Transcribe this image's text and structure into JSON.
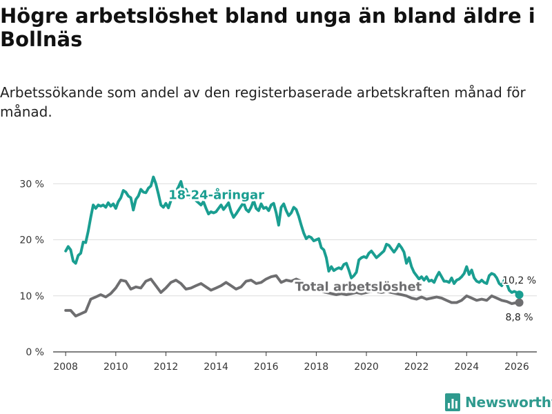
{
  "header": {
    "title": "Högre arbetslöshet bland unga än bland äldre i Bollnäs",
    "subtitle": "Arbetssökande som andel av den registerbaserade arbetskraften månad för månad."
  },
  "colors": {
    "youth": "#1a9e91",
    "total": "#6e6e70",
    "grid": "#dcdcdc",
    "brand": "#2f9a8e"
  },
  "brand": {
    "name": "Newsworthy",
    "icon": "bar-chart-logo-icon"
  },
  "chart_data": {
    "type": "line",
    "title": "Högre arbetslöshet bland unga än bland äldre i Bollnäs",
    "xlabel": "",
    "ylabel": "",
    "xlim": [
      2007.5,
      2026.8
    ],
    "ylim": [
      0,
      32
    ],
    "yticks": [
      0,
      10,
      20,
      30
    ],
    "ytick_labels": [
      "0 %",
      "10 %",
      "20 %",
      "30 %"
    ],
    "xticks": [
      2008,
      2010,
      2012,
      2014,
      2016,
      2018,
      2020,
      2022,
      2024,
      2026
    ],
    "xtick_labels": [
      "2008",
      "2010",
      "2012",
      "2014",
      "2016",
      "2018",
      "2020",
      "2022",
      "2024",
      "2026"
    ],
    "grid": true,
    "series": [
      {
        "name": "18-24-åringar",
        "label": "18-24-åringar",
        "color": "#1a9e91",
        "end_label": "10,2 %",
        "points": [
          [
            2008.0,
            18.0
          ],
          [
            2008.1,
            18.8
          ],
          [
            2008.2,
            18.2
          ],
          [
            2008.3,
            16.2
          ],
          [
            2008.4,
            15.8
          ],
          [
            2008.5,
            17.2
          ],
          [
            2008.6,
            17.6
          ],
          [
            2008.7,
            19.6
          ],
          [
            2008.8,
            19.5
          ],
          [
            2008.9,
            21.5
          ],
          [
            2009.0,
            24.0
          ],
          [
            2009.1,
            26.2
          ],
          [
            2009.2,
            25.6
          ],
          [
            2009.3,
            26.2
          ],
          [
            2009.4,
            26.0
          ],
          [
            2009.5,
            26.2
          ],
          [
            2009.6,
            25.8
          ],
          [
            2009.7,
            26.6
          ],
          [
            2009.8,
            26.0
          ],
          [
            2009.9,
            26.4
          ],
          [
            2010.0,
            25.6
          ],
          [
            2010.1,
            26.8
          ],
          [
            2010.2,
            27.5
          ],
          [
            2010.3,
            28.8
          ],
          [
            2010.4,
            28.5
          ],
          [
            2010.5,
            27.8
          ],
          [
            2010.6,
            27.5
          ],
          [
            2010.7,
            25.3
          ],
          [
            2010.8,
            27.2
          ],
          [
            2010.9,
            27.8
          ],
          [
            2011.0,
            29.0
          ],
          [
            2011.1,
            28.5
          ],
          [
            2011.2,
            28.4
          ],
          [
            2011.3,
            29.2
          ],
          [
            2011.4,
            29.6
          ],
          [
            2011.5,
            31.2
          ],
          [
            2011.6,
            30.0
          ],
          [
            2011.7,
            28.2
          ],
          [
            2011.8,
            26.2
          ],
          [
            2011.9,
            25.8
          ],
          [
            2012.0,
            26.5
          ],
          [
            2012.1,
            25.7
          ],
          [
            2012.2,
            27.0
          ],
          [
            2012.3,
            28.2
          ],
          [
            2012.4,
            28.6
          ],
          [
            2012.5,
            29.4
          ],
          [
            2012.6,
            30.4
          ],
          [
            2012.7,
            28.6
          ],
          [
            2012.8,
            29.0
          ],
          [
            2012.9,
            27.8
          ],
          [
            2013.0,
            27.4
          ],
          [
            2013.1,
            27.8
          ],
          [
            2013.2,
            27.0
          ],
          [
            2013.3,
            26.6
          ],
          [
            2013.4,
            26.2
          ],
          [
            2013.5,
            26.8
          ],
          [
            2013.6,
            25.6
          ],
          [
            2013.7,
            24.6
          ],
          [
            2013.8,
            25.0
          ],
          [
            2013.9,
            24.8
          ],
          [
            2014.0,
            25.0
          ],
          [
            2014.1,
            25.6
          ],
          [
            2014.2,
            26.2
          ],
          [
            2014.3,
            25.4
          ],
          [
            2014.4,
            26.0
          ],
          [
            2014.5,
            26.6
          ],
          [
            2014.6,
            25.0
          ],
          [
            2014.7,
            24.0
          ],
          [
            2014.8,
            24.6
          ],
          [
            2014.9,
            25.3
          ],
          [
            2015.0,
            26.0
          ],
          [
            2015.1,
            26.6
          ],
          [
            2015.2,
            25.4
          ],
          [
            2015.3,
            25.0
          ],
          [
            2015.4,
            25.8
          ],
          [
            2015.5,
            27.0
          ],
          [
            2015.6,
            25.6
          ],
          [
            2015.7,
            25.2
          ],
          [
            2015.8,
            26.4
          ],
          [
            2015.9,
            25.6
          ],
          [
            2016.0,
            25.8
          ],
          [
            2016.1,
            25.2
          ],
          [
            2016.2,
            26.2
          ],
          [
            2016.3,
            26.5
          ],
          [
            2016.4,
            24.8
          ],
          [
            2016.5,
            22.6
          ],
          [
            2016.6,
            25.8
          ],
          [
            2016.7,
            26.4
          ],
          [
            2016.8,
            25.2
          ],
          [
            2016.9,
            24.3
          ],
          [
            2017.0,
            24.8
          ],
          [
            2017.1,
            25.8
          ],
          [
            2017.2,
            25.4
          ],
          [
            2017.3,
            24.2
          ],
          [
            2017.4,
            22.6
          ],
          [
            2017.5,
            21.2
          ],
          [
            2017.6,
            20.2
          ],
          [
            2017.7,
            20.6
          ],
          [
            2017.8,
            20.4
          ],
          [
            2017.9,
            19.8
          ],
          [
            2018.0,
            20.0
          ],
          [
            2018.1,
            20.2
          ],
          [
            2018.2,
            18.6
          ],
          [
            2018.3,
            18.2
          ],
          [
            2018.4,
            16.8
          ],
          [
            2018.5,
            14.4
          ],
          [
            2018.6,
            15.2
          ],
          [
            2018.7,
            14.5
          ],
          [
            2018.8,
            14.8
          ],
          [
            2018.9,
            15.0
          ],
          [
            2019.0,
            14.8
          ],
          [
            2019.1,
            15.6
          ],
          [
            2019.2,
            15.8
          ],
          [
            2019.3,
            14.6
          ],
          [
            2019.4,
            13.2
          ],
          [
            2019.5,
            13.6
          ],
          [
            2019.6,
            14.2
          ],
          [
            2019.7,
            16.4
          ],
          [
            2019.8,
            16.8
          ],
          [
            2019.9,
            17.0
          ],
          [
            2020.0,
            16.8
          ],
          [
            2020.1,
            17.6
          ],
          [
            2020.2,
            18.0
          ],
          [
            2020.3,
            17.4
          ],
          [
            2020.4,
            16.8
          ],
          [
            2020.5,
            17.2
          ],
          [
            2020.6,
            17.6
          ],
          [
            2020.7,
            18.0
          ],
          [
            2020.8,
            19.2
          ],
          [
            2020.9,
            19.0
          ],
          [
            2021.0,
            18.4
          ],
          [
            2021.1,
            17.8
          ],
          [
            2021.2,
            18.4
          ],
          [
            2021.3,
            19.2
          ],
          [
            2021.4,
            18.6
          ],
          [
            2021.5,
            17.8
          ],
          [
            2021.6,
            15.8
          ],
          [
            2021.7,
            16.8
          ],
          [
            2021.8,
            15.2
          ],
          [
            2021.9,
            14.2
          ],
          [
            2022.0,
            13.6
          ],
          [
            2022.1,
            13.0
          ],
          [
            2022.2,
            13.4
          ],
          [
            2022.3,
            12.8
          ],
          [
            2022.4,
            13.4
          ],
          [
            2022.5,
            12.6
          ],
          [
            2022.6,
            12.8
          ],
          [
            2022.7,
            12.4
          ],
          [
            2022.8,
            13.4
          ],
          [
            2022.9,
            14.2
          ],
          [
            2023.0,
            13.4
          ],
          [
            2023.1,
            12.6
          ],
          [
            2023.2,
            12.6
          ],
          [
            2023.3,
            12.4
          ],
          [
            2023.4,
            13.2
          ],
          [
            2023.5,
            12.2
          ],
          [
            2023.6,
            12.8
          ],
          [
            2023.7,
            13.0
          ],
          [
            2023.8,
            13.4
          ],
          [
            2023.9,
            14.0
          ],
          [
            2024.0,
            15.2
          ],
          [
            2024.1,
            13.8
          ],
          [
            2024.2,
            14.6
          ],
          [
            2024.3,
            13.2
          ],
          [
            2024.4,
            12.6
          ],
          [
            2024.5,
            12.4
          ],
          [
            2024.6,
            12.8
          ],
          [
            2024.7,
            12.4
          ],
          [
            2024.8,
            12.2
          ],
          [
            2024.9,
            13.6
          ],
          [
            2025.0,
            14.0
          ],
          [
            2025.1,
            13.8
          ],
          [
            2025.2,
            13.2
          ],
          [
            2025.3,
            12.2
          ],
          [
            2025.4,
            11.8
          ],
          [
            2025.5,
            12.8
          ],
          [
            2025.6,
            12.2
          ],
          [
            2025.7,
            11.0
          ],
          [
            2025.8,
            10.6
          ],
          [
            2025.9,
            10.8
          ],
          [
            2026.0,
            10.6
          ],
          [
            2026.1,
            10.2
          ]
        ]
      },
      {
        "name": "Total arbetslöshet",
        "label": "Total arbetslöshet",
        "color": "#6e6e70",
        "end_label": "8,8 %",
        "points": [
          [
            2008.0,
            7.4
          ],
          [
            2008.2,
            7.4
          ],
          [
            2008.4,
            6.4
          ],
          [
            2008.6,
            6.8
          ],
          [
            2008.8,
            7.2
          ],
          [
            2009.0,
            9.4
          ],
          [
            2009.2,
            9.8
          ],
          [
            2009.4,
            10.2
          ],
          [
            2009.6,
            9.8
          ],
          [
            2009.8,
            10.4
          ],
          [
            2010.0,
            11.4
          ],
          [
            2010.2,
            12.8
          ],
          [
            2010.4,
            12.6
          ],
          [
            2010.6,
            11.2
          ],
          [
            2010.8,
            11.6
          ],
          [
            2011.0,
            11.4
          ],
          [
            2011.2,
            12.6
          ],
          [
            2011.4,
            13.0
          ],
          [
            2011.6,
            11.8
          ],
          [
            2011.8,
            10.6
          ],
          [
            2012.0,
            11.4
          ],
          [
            2012.2,
            12.4
          ],
          [
            2012.4,
            12.8
          ],
          [
            2012.6,
            12.2
          ],
          [
            2012.8,
            11.2
          ],
          [
            2013.0,
            11.4
          ],
          [
            2013.2,
            11.8
          ],
          [
            2013.4,
            12.2
          ],
          [
            2013.6,
            11.6
          ],
          [
            2013.8,
            11.0
          ],
          [
            2014.0,
            11.4
          ],
          [
            2014.2,
            11.8
          ],
          [
            2014.4,
            12.4
          ],
          [
            2014.6,
            11.8
          ],
          [
            2014.8,
            11.2
          ],
          [
            2015.0,
            11.6
          ],
          [
            2015.2,
            12.6
          ],
          [
            2015.4,
            12.8
          ],
          [
            2015.6,
            12.2
          ],
          [
            2015.8,
            12.4
          ],
          [
            2016.0,
            13.0
          ],
          [
            2016.2,
            13.4
          ],
          [
            2016.4,
            13.6
          ],
          [
            2016.6,
            12.4
          ],
          [
            2016.8,
            12.8
          ],
          [
            2017.0,
            12.6
          ],
          [
            2017.2,
            13.0
          ],
          [
            2017.4,
            12.6
          ],
          [
            2017.6,
            11.6
          ],
          [
            2017.8,
            11.4
          ],
          [
            2018.0,
            11.2
          ],
          [
            2018.2,
            10.8
          ],
          [
            2018.4,
            10.6
          ],
          [
            2018.6,
            10.4
          ],
          [
            2018.8,
            10.2
          ],
          [
            2019.0,
            10.4
          ],
          [
            2019.2,
            10.2
          ],
          [
            2019.4,
            10.4
          ],
          [
            2019.6,
            10.6
          ],
          [
            2019.8,
            10.4
          ],
          [
            2020.0,
            10.6
          ],
          [
            2020.2,
            10.8
          ],
          [
            2020.4,
            10.8
          ],
          [
            2020.6,
            10.6
          ],
          [
            2020.8,
            10.8
          ],
          [
            2021.0,
            10.6
          ],
          [
            2021.2,
            10.4
          ],
          [
            2021.4,
            10.2
          ],
          [
            2021.6,
            10.0
          ],
          [
            2021.8,
            9.6
          ],
          [
            2022.0,
            9.4
          ],
          [
            2022.2,
            9.8
          ],
          [
            2022.4,
            9.4
          ],
          [
            2022.6,
            9.6
          ],
          [
            2022.8,
            9.8
          ],
          [
            2023.0,
            9.6
          ],
          [
            2023.2,
            9.2
          ],
          [
            2023.4,
            8.8
          ],
          [
            2023.6,
            8.8
          ],
          [
            2023.8,
            9.2
          ],
          [
            2024.0,
            10.0
          ],
          [
            2024.2,
            9.6
          ],
          [
            2024.4,
            9.2
          ],
          [
            2024.6,
            9.4
          ],
          [
            2024.8,
            9.2
          ],
          [
            2025.0,
            10.0
          ],
          [
            2025.2,
            9.6
          ],
          [
            2025.4,
            9.2
          ],
          [
            2025.6,
            9.0
          ],
          [
            2025.8,
            8.6
          ],
          [
            2026.0,
            8.8
          ],
          [
            2026.1,
            8.8
          ]
        ]
      }
    ]
  }
}
